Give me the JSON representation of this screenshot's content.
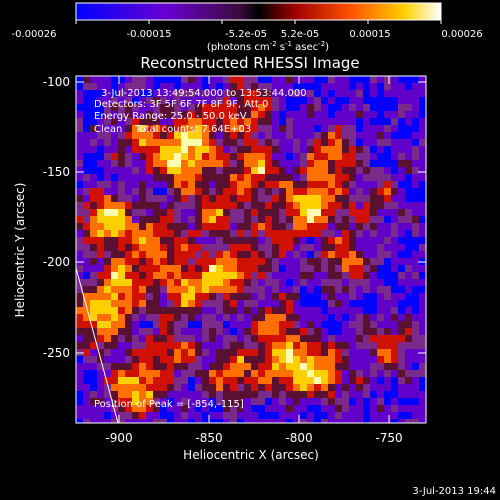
{
  "colorbar": {
    "tick_labels": [
      "-0.00026",
      "-0.00015",
      "-5.2e-05",
      "5.2e-05",
      "0.00015",
      "0.00026"
    ],
    "unit_parts": [
      "(photons cm",
      "-2",
      " s",
      "-1",
      " asec",
      "-2",
      ")"
    ]
  },
  "plot": {
    "title": "Reconstructed RHESSI Image",
    "x_label": "Heliocentric X (arcsec)",
    "y_label": "Heliocentric Y (arcsec)",
    "x_ticks": [
      "-900",
      "-850",
      "-800",
      "-750"
    ],
    "y_ticks": [
      "-100",
      "-150",
      "-200",
      "-250"
    ]
  },
  "annotations": {
    "time_range": "3-Jul-2013 13:49:54.000 to 13:53:44.000",
    "detectors": "Detectors: 3F 5F 6F 7F 8F 9F, Att 0",
    "energy": "Energy Range: 25.0 - 50.0 keV",
    "clean": "Clean    Total counts: 7.64E+03",
    "peak": "Position of Peak = [-854,-115]"
  },
  "footer": {
    "timestamp": "3-Jul-2013 19:44"
  },
  "colors": {
    "background": "#000000",
    "palette": [
      "#0000ff",
      "#6000c8",
      "#7a2a8a",
      "#5a1030",
      "#d01000",
      "#ff7000",
      "#ffd000",
      "#ffffb0"
    ]
  }
}
